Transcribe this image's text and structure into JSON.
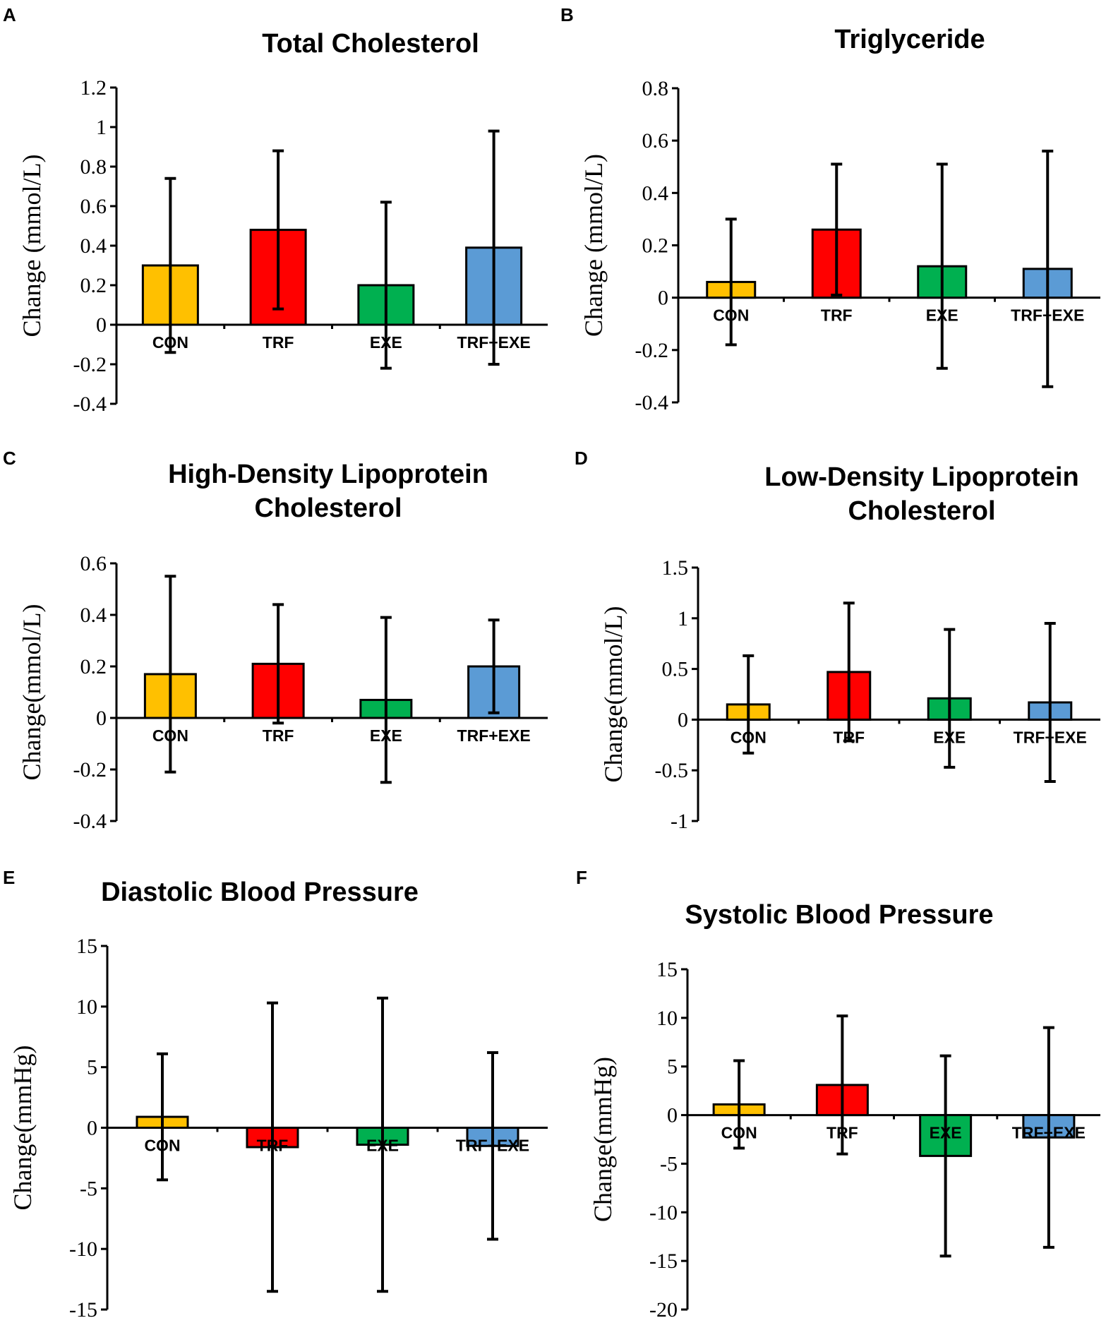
{
  "colors": {
    "CON": "#FFC000",
    "TRF": "#FF0000",
    "EXE": "#00B050",
    "TRF+EXE": "#5B9BD5",
    "axis": "#000000"
  },
  "chart_data": [
    {
      "panel": "A",
      "type": "bar",
      "title": [
        "Total Cholesterol"
      ],
      "ylabel": "Change (mmol/L)",
      "categories": [
        "CON",
        "TRF",
        "EXE",
        "TRF+EXE"
      ],
      "values": [
        0.3,
        0.48,
        0.2,
        0.39
      ],
      "error": [
        0.44,
        0.4,
        0.42,
        0.59
      ],
      "ylim": [
        -0.4,
        1.2
      ],
      "yticks": [
        -0.4,
        -0.2,
        0,
        0.2,
        0.4,
        0.6,
        0.8,
        1,
        1.2
      ],
      "ytick_labels": [
        "-0.4",
        "-0.2",
        "0",
        "0.2",
        "0.4",
        "0.6",
        "0.8",
        "1",
        "1.2"
      ]
    },
    {
      "panel": "B",
      "type": "bar",
      "title": [
        "Triglyceride"
      ],
      "ylabel": "Change (mmol/L)",
      "categories": [
        "CON",
        "TRF",
        "EXE",
        "TRF+EXE"
      ],
      "values": [
        0.06,
        0.26,
        0.12,
        0.11
      ],
      "error": [
        0.24,
        0.25,
        0.39,
        0.45
      ],
      "ylim": [
        -0.4,
        0.8
      ],
      "yticks": [
        -0.4,
        -0.2,
        0,
        0.2,
        0.4,
        0.6,
        0.8
      ],
      "ytick_labels": [
        "-0.4",
        "-0.2",
        "0",
        "0.2",
        "0.4",
        "0.6",
        "0.8"
      ]
    },
    {
      "panel": "C",
      "type": "bar",
      "title": [
        "High-Density Lipoprotein",
        "Cholesterol"
      ],
      "ylabel": "Change(mmol/L)",
      "categories": [
        "CON",
        "TRF",
        "EXE",
        "TRF+EXE"
      ],
      "values": [
        0.17,
        0.21,
        0.07,
        0.2
      ],
      "error": [
        0.38,
        0.23,
        0.32,
        0.18
      ],
      "ylim": [
        -0.4,
        0.6
      ],
      "yticks": [
        -0.4,
        -0.2,
        0,
        0.2,
        0.4,
        0.6
      ],
      "ytick_labels": [
        "-0.4",
        "-0.2",
        "0",
        "0.2",
        "0.4",
        "0.6"
      ]
    },
    {
      "panel": "D",
      "type": "bar",
      "title": [
        "Low-Density Lipoprotein",
        "Cholesterol"
      ],
      "ylabel": "Change(mmol/L)",
      "categories": [
        "CON",
        "TRF",
        "EXE",
        "TRF+EXE"
      ],
      "values": [
        0.15,
        0.47,
        0.21,
        0.17
      ],
      "error": [
        0.48,
        0.68,
        0.68,
        0.78
      ],
      "ylim": [
        -1,
        1.5
      ],
      "yticks": [
        -1,
        -0.5,
        0,
        0.5,
        1,
        1.5
      ],
      "ytick_labels": [
        "-1",
        "-0.5",
        "0",
        "0.5",
        "1",
        "1.5"
      ]
    },
    {
      "panel": "E",
      "type": "bar",
      "title": [
        "Diastolic Blood Pressure"
      ],
      "ylabel": "Change(mmHg)",
      "categories": [
        "CON",
        "TRF",
        "EXE",
        "TRF+EXE"
      ],
      "values": [
        0.9,
        -1.6,
        -1.4,
        -1.5
      ],
      "error": [
        5.2,
        11.9,
        12.1,
        7.7
      ],
      "ylim": [
        -15,
        15
      ],
      "yticks": [
        -15,
        -10,
        -5,
        0,
        5,
        10,
        15
      ],
      "ytick_labels": [
        "-15",
        "-10",
        "-5",
        "0",
        "5",
        "10",
        "15"
      ]
    },
    {
      "panel": "F",
      "type": "bar",
      "title": [
        "Systolic Blood Pressure"
      ],
      "ylabel": "Change(mmHg)",
      "categories": [
        "CON",
        "TRF",
        "EXE",
        "TRF+EXE"
      ],
      "values": [
        1.1,
        3.1,
        -4.2,
        -2.3
      ],
      "error": [
        4.5,
        7.1,
        10.3,
        11.3
      ],
      "ylim": [
        -20,
        15
      ],
      "yticks": [
        -20,
        -15,
        -10,
        -5,
        0,
        5,
        10,
        15
      ],
      "ytick_labels": [
        "-20",
        "-15",
        "-10",
        "-5",
        "0",
        "5",
        "10",
        "15"
      ]
    }
  ]
}
